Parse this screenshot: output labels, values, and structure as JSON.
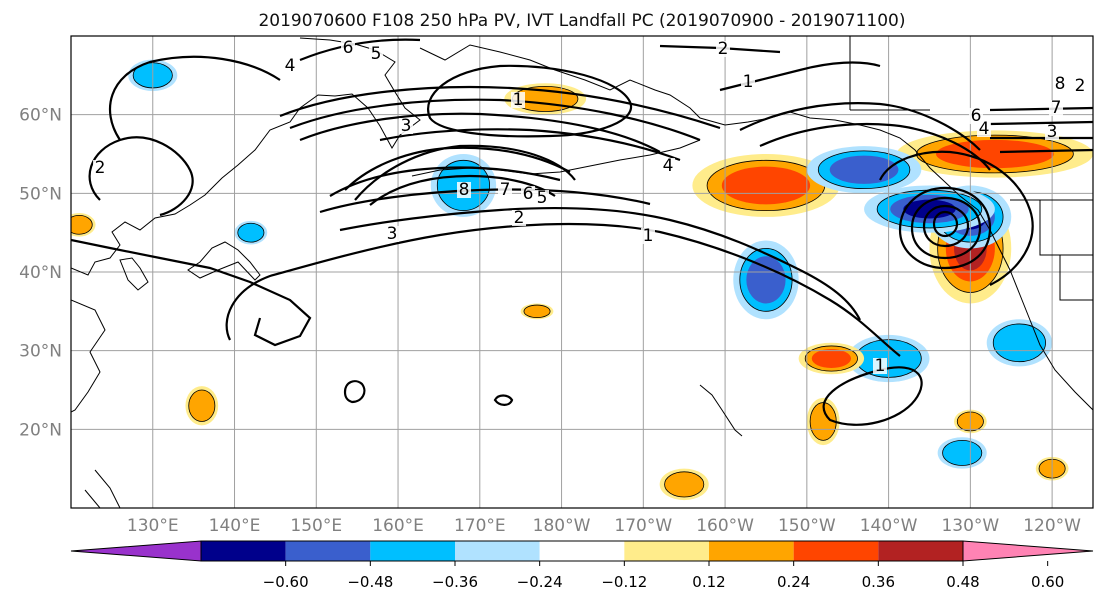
{
  "chart_data": {
    "type": "heatmap",
    "title": "2019070600 F108 250 hPa PV, IVT Landfall PC (2019070900 - 2019071100)",
    "projection": "equirectangular",
    "lon_range": [
      120,
      245
    ],
    "lat_range": [
      10,
      70
    ],
    "x_ticks": [
      {
        "lon": 130,
        "label": "130°E"
      },
      {
        "lon": 140,
        "label": "140°E"
      },
      {
        "lon": 150,
        "label": "150°E"
      },
      {
        "lon": 160,
        "label": "160°E"
      },
      {
        "lon": 170,
        "label": "170°E"
      },
      {
        "lon": 180,
        "label": "180°W"
      },
      {
        "lon": 190,
        "label": "170°W"
      },
      {
        "lon": 200,
        "label": "160°W"
      },
      {
        "lon": 210,
        "label": "150°W"
      },
      {
        "lon": 220,
        "label": "140°W"
      },
      {
        "lon": 230,
        "label": "130°W"
      },
      {
        "lon": 240,
        "label": "120°W"
      }
    ],
    "y_ticks": [
      {
        "lat": 20,
        "label": "20°N"
      },
      {
        "lat": 30,
        "label": "30°N"
      },
      {
        "lat": 40,
        "label": "40°N"
      },
      {
        "lat": 50,
        "label": "50°N"
      },
      {
        "lat": 60,
        "label": "60°N"
      }
    ],
    "grid": true,
    "colorbar": {
      "position": "bottom",
      "extend": "both",
      "boundaries": [
        -0.72,
        -0.6,
        -0.48,
        -0.36,
        -0.24,
        -0.12,
        0.12,
        0.24,
        0.36,
        0.48,
        0.6,
        0.72
      ],
      "colors": [
        "#9932cc",
        "#00008b",
        "#3a5fcd",
        "#00bfff",
        "#b0e2ff",
        "#ffffff",
        "#ffec8b",
        "#ffa500",
        "#ff4500",
        "#b22222",
        "#ff83b4"
      ],
      "tick_values": [
        -0.6,
        -0.48,
        -0.36,
        -0.24,
        -0.12,
        0.12,
        0.24,
        0.36,
        0.48,
        0.6
      ],
      "tick_labels": [
        "−0.60",
        "−0.48",
        "−0.36",
        "−0.24",
        "−0.12",
        "0.12",
        "0.24",
        "0.36",
        "0.48",
        "0.60"
      ]
    },
    "shaded_regions": [
      {
        "lon": 205,
        "lat": 51,
        "rx": 9,
        "ry": 4,
        "value": 0.45
      },
      {
        "lon": 230,
        "lat": 43,
        "rx": 5,
        "ry": 7,
        "value": 0.55
      },
      {
        "lon": 233,
        "lat": 55,
        "rx": 12,
        "ry": 3,
        "value": 0.45
      },
      {
        "lon": 230,
        "lat": 47,
        "rx": 5,
        "ry": 4,
        "value": -0.65
      },
      {
        "lon": 225,
        "lat": 48,
        "rx": 8,
        "ry": 3,
        "value": -0.5
      },
      {
        "lon": 217,
        "lat": 53,
        "rx": 7,
        "ry": 3,
        "value": -0.45
      },
      {
        "lon": 205,
        "lat": 39,
        "rx": 4,
        "ry": 5,
        "value": -0.4
      },
      {
        "lon": 220,
        "lat": 29,
        "rx": 5,
        "ry": 3,
        "value": -0.3
      },
      {
        "lon": 236,
        "lat": 31,
        "rx": 4,
        "ry": 3,
        "value": -0.35
      },
      {
        "lon": 168,
        "lat": 51,
        "rx": 4,
        "ry": 4,
        "value": -0.3
      },
      {
        "lon": 130,
        "lat": 65,
        "rx": 3,
        "ry": 2,
        "value": -0.3
      },
      {
        "lon": 142,
        "lat": 45,
        "rx": 2,
        "ry": 1.5,
        "value": -0.3
      },
      {
        "lon": 178,
        "lat": 62,
        "rx": 5,
        "ry": 2,
        "value": 0.35
      },
      {
        "lon": 213,
        "lat": 29,
        "rx": 4,
        "ry": 2,
        "value": 0.4
      },
      {
        "lon": 212,
        "lat": 21,
        "rx": 2,
        "ry": 3,
        "value": 0.3
      },
      {
        "lon": 230,
        "lat": 21,
        "rx": 2,
        "ry": 1.5,
        "value": 0.35
      },
      {
        "lon": 136,
        "lat": 23,
        "rx": 2,
        "ry": 2.5,
        "value": 0.3
      },
      {
        "lon": 177,
        "lat": 35,
        "rx": 2,
        "ry": 1,
        "value": 0.3
      },
      {
        "lon": 195,
        "lat": 13,
        "rx": 3,
        "ry": 2,
        "value": 0.35
      },
      {
        "lon": 121,
        "lat": 46,
        "rx": 2,
        "ry": 1.5,
        "value": 0.3
      },
      {
        "lon": 240,
        "lat": 15,
        "rx": 2,
        "ry": 1.5,
        "value": 0.3
      },
      {
        "lon": 229,
        "lat": 17,
        "rx": 3,
        "ry": 2,
        "value": -0.35
      }
    ],
    "contour_labels": [
      "2",
      "1",
      "6",
      "5",
      "4",
      "3",
      "8",
      "7",
      "6",
      "5",
      "2",
      "3",
      "1",
      "2",
      "4",
      "1",
      "2",
      "7",
      "8",
      "6",
      "4",
      "3",
      "1"
    ]
  }
}
